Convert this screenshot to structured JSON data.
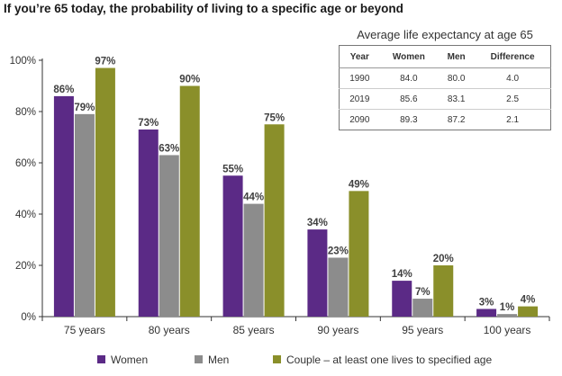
{
  "chart_data": {
    "type": "bar",
    "title": "If you’re 65 today, the probability of living to a specific age or beyond",
    "categories": [
      "75 years",
      "80 years",
      "85 years",
      "90 years",
      "95 years",
      "100 years"
    ],
    "series": [
      {
        "name": "Women",
        "color": "#5b2a86",
        "values": [
          86,
          73,
          55,
          34,
          14,
          3
        ],
        "labels": [
          "86%",
          "73%",
          "55%",
          "34%",
          "14%",
          "3%"
        ]
      },
      {
        "name": "Men",
        "color": "#8c8c8c",
        "values": [
          79,
          63,
          44,
          23,
          7,
          1
        ],
        "labels": [
          "79%",
          "63%",
          "44%",
          "23%",
          "7%",
          "1%"
        ]
      },
      {
        "name": "Couple – at least one lives to specified age",
        "color": "#8a8f2a",
        "values": [
          97,
          90,
          75,
          49,
          20,
          4
        ],
        "labels": [
          "97%",
          "90%",
          "75%",
          "49%",
          "20%",
          "4%"
        ]
      }
    ],
    "ylim": [
      0,
      100
    ],
    "yticks": [
      0,
      20,
      40,
      60,
      80,
      100
    ],
    "ytick_labels": [
      "0%",
      "20%",
      "40%",
      "60%",
      "80%",
      "100%"
    ],
    "grid": false,
    "legend_position": "bottom"
  },
  "inset_table": {
    "title": "Average life expectancy at age 65",
    "headers": [
      "Year",
      "Women",
      "Men",
      "Difference"
    ],
    "rows": [
      [
        "1990",
        "84.0",
        "80.0",
        "4.0"
      ],
      [
        "2019",
        "85.6",
        "83.1",
        "2.5"
      ],
      [
        "2090",
        "89.3",
        "87.2",
        "2.1"
      ]
    ]
  }
}
